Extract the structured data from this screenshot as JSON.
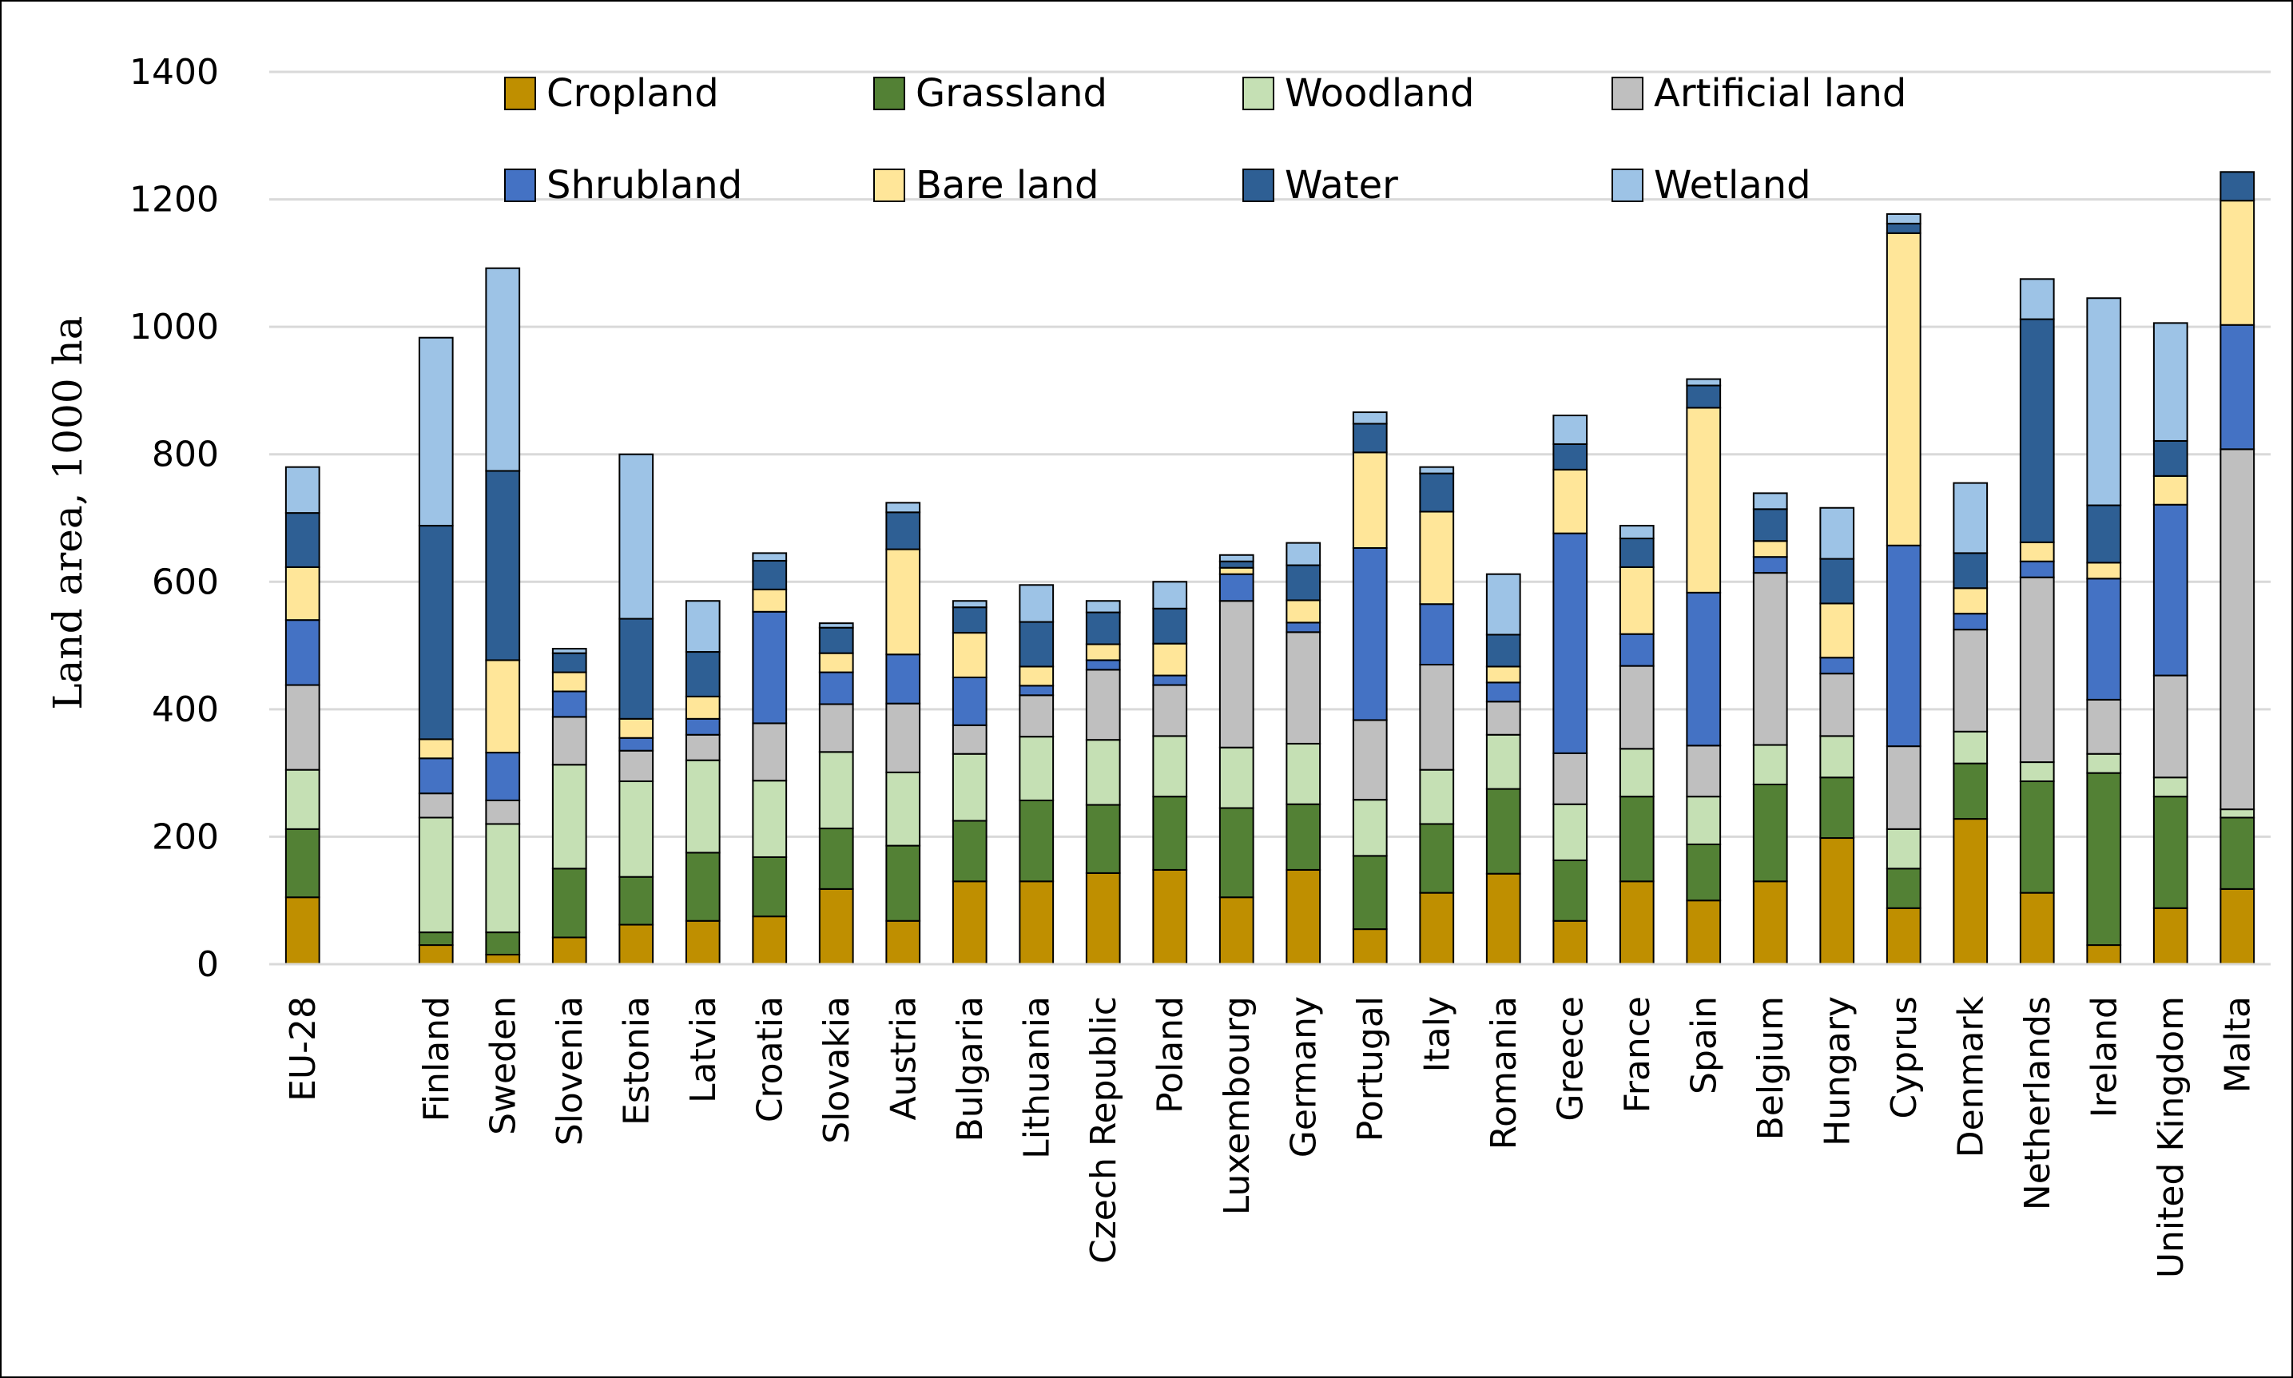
{
  "chart_data": {
    "type": "bar",
    "stacked": true,
    "title": "",
    "xlabel": "",
    "ylabel": "Land area, 1000 ha",
    "ylim": [
      0,
      1400
    ],
    "yticks": [
      0,
      200,
      400,
      600,
      800,
      1000,
      1200,
      1400
    ],
    "grid": true,
    "legend_position": "top",
    "categories": [
      "EU-28",
      "",
      "Finland",
      "Sweden",
      "Slovenia",
      "Estonia",
      "Latvia",
      "Croatia",
      "Slovakia",
      "Austria",
      "Bulgaria",
      "Lithuania",
      "Czech Republic",
      "Poland",
      "Luxembourg",
      "Germany",
      "Portugal",
      "Italy",
      "Romania",
      "Greece",
      "France",
      "Spain",
      "Belgium",
      "Hungary",
      "Cyprus",
      "Denmark",
      "Netherlands",
      "Ireland",
      "United Kingdom",
      "Malta"
    ],
    "series": [
      {
        "name": "Cropland",
        "color": "#bf8f00",
        "values": [
          105,
          0,
          30,
          15,
          42,
          62,
          68,
          75,
          118,
          68,
          130,
          130,
          143,
          148,
          105,
          148,
          55,
          112,
          142,
          68,
          130,
          100,
          130,
          198,
          88,
          228,
          112,
          30,
          88,
          118
        ]
      },
      {
        "name": "Grassland",
        "color": "#538135",
        "values": [
          107,
          0,
          20,
          35,
          108,
          75,
          107,
          93,
          95,
          118,
          95,
          127,
          107,
          115,
          140,
          103,
          115,
          108,
          133,
          95,
          133,
          88,
          152,
          95,
          62,
          87,
          175,
          270,
          175,
          112
        ]
      },
      {
        "name": "Woodland",
        "color": "#c5e0b4",
        "values": [
          93,
          0,
          180,
          170,
          163,
          150,
          145,
          120,
          120,
          115,
          105,
          100,
          102,
          95,
          95,
          95,
          88,
          85,
          85,
          88,
          75,
          75,
          62,
          65,
          62,
          50,
          30,
          30,
          30,
          13
        ]
      },
      {
        "name": "Artificial land",
        "color": "#bfbfbf",
        "values": [
          133,
          0,
          38,
          37,
          75,
          48,
          40,
          90,
          75,
          108,
          45,
          65,
          110,
          80,
          230,
          175,
          125,
          165,
          52,
          80,
          130,
          80,
          270,
          98,
          130,
          160,
          290,
          85,
          160,
          565
        ]
      },
      {
        "name": "Shrubland",
        "color": "#4472c4",
        "values": [
          102,
          0,
          55,
          75,
          40,
          20,
          25,
          175,
          50,
          77,
          75,
          15,
          15,
          15,
          42,
          15,
          270,
          95,
          30,
          345,
          50,
          240,
          25,
          25,
          315,
          25,
          25,
          190,
          268,
          195
        ]
      },
      {
        "name": "Bare land",
        "color": "#ffe699",
        "values": [
          83,
          0,
          30,
          145,
          30,
          30,
          35,
          35,
          30,
          165,
          70,
          30,
          25,
          50,
          10,
          35,
          150,
          145,
          25,
          100,
          105,
          290,
          25,
          85,
          490,
          40,
          30,
          25,
          45,
          195
        ]
      },
      {
        "name": "Water",
        "color": "#2e5f94",
        "values": [
          85,
          0,
          335,
          297,
          30,
          157,
          70,
          45,
          40,
          58,
          40,
          70,
          50,
          55,
          10,
          55,
          45,
          60,
          50,
          40,
          45,
          35,
          50,
          70,
          15,
          55,
          350,
          90,
          55,
          45
        ]
      },
      {
        "name": "Wetland",
        "color": "#9dc3e6",
        "values": [
          72,
          0,
          295,
          318,
          7,
          258,
          80,
          12,
          7,
          15,
          10,
          58,
          18,
          42,
          10,
          35,
          18,
          10,
          95,
          45,
          20,
          10,
          25,
          80,
          15,
          110,
          63,
          325,
          185,
          0
        ]
      }
    ]
  }
}
